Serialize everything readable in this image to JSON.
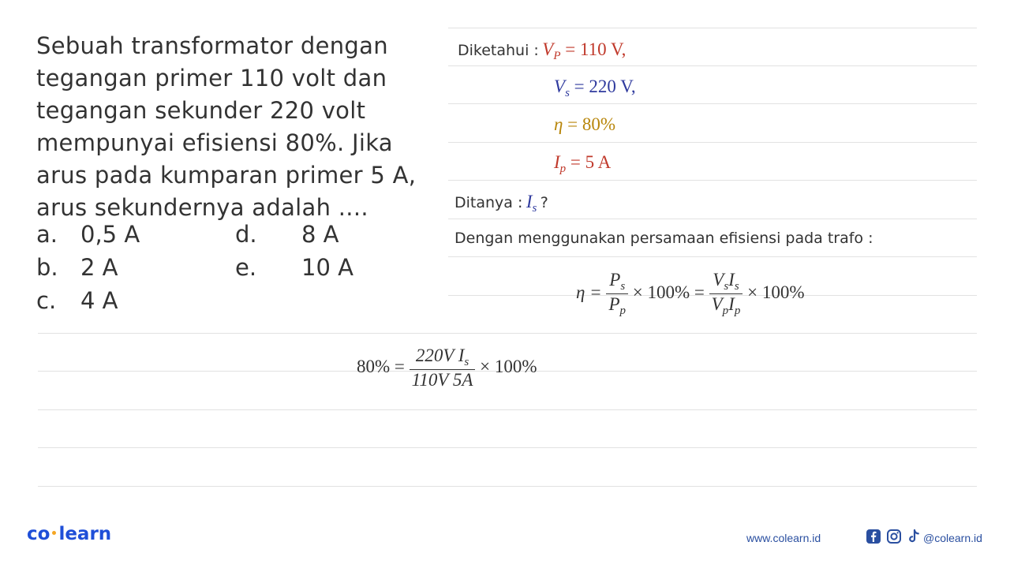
{
  "question": {
    "lines": [
      "Sebuah transformator dengan",
      "tegangan primer 110 volt dan",
      "tegangan sekunder 220 volt",
      "mempunyai efisiensi 80%. Jika",
      "arus pada kumparan primer 5 A,",
      "arus sekundernya adalah ...."
    ],
    "options": [
      {
        "letter": "a.",
        "value": "0,5 A"
      },
      {
        "letter": "b.",
        "value": "2 A"
      },
      {
        "letter": "c.",
        "value": "4 A"
      },
      {
        "letter": "d.",
        "value": "8 A"
      },
      {
        "letter": "e.",
        "value": "10 A"
      }
    ]
  },
  "solution": {
    "known_label": "Diketahui :",
    "vp": {
      "sym": "V",
      "sub": "P",
      "rhs": "= 110 V,"
    },
    "vs": {
      "sym": "V",
      "sub": "s",
      "rhs": "= 220 V,"
    },
    "eta": {
      "sym": "η",
      "rhs": "= 80%"
    },
    "ip": {
      "sym": "I",
      "sub": "p",
      "rhs": "= 5 A"
    },
    "asked_label": "Ditanya :",
    "asked": {
      "sym": "I",
      "sub": "s",
      "tail": "?"
    },
    "method_text": "Dengan menggunakan persamaan efisiensi pada trafo :",
    "formula": {
      "eta": "η =",
      "f1_num": "P",
      "f1_num_sub": "s",
      "f1_den": "P",
      "f1_den_sub": "p",
      "times1": "× 100% =",
      "f2_num_a": "V",
      "f2_num_a_sub": "s",
      "f2_num_b": "I",
      "f2_num_b_sub": "s",
      "f2_den_a": "V",
      "f2_den_a_sub": "p",
      "f2_den_b": "I",
      "f2_den_b_sub": "p",
      "times2": "× 100%"
    },
    "calc": {
      "lhs": "80% =",
      "num": "220V I",
      "num_sub": "s",
      "den": "110V 5A",
      "tail": "× 100%"
    }
  },
  "footer": {
    "logo_left": "co",
    "logo_right": "learn",
    "url": "www.colearn.id",
    "handle": "@colearn.id"
  },
  "colors": {
    "vp": "#c0392b",
    "vs": "#2f3a9e",
    "eta": "#b8860b",
    "ip": "#c0392b",
    "brand": "#1f4fd8"
  },
  "icons": [
    "facebook-icon",
    "instagram-icon",
    "tiktok-icon"
  ]
}
